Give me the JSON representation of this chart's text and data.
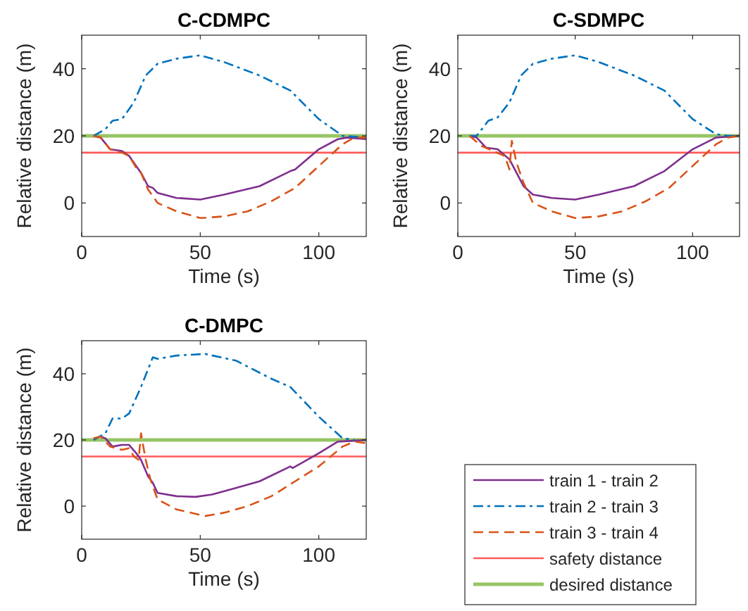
{
  "chart_data": [
    {
      "type": "line",
      "title": "C-CDMPC",
      "xlabel": "Time (s)",
      "ylabel": "Relative distance (m)",
      "xlim": [
        0,
        120
      ],
      "ylim": [
        -10,
        50
      ],
      "xticks": [
        0,
        50,
        100
      ],
      "yticks": [
        0,
        20,
        40
      ],
      "grid": false,
      "legend": "bottom right",
      "series": [
        {
          "name": "train 1 - train 2",
          "color": "#7e2f8e",
          "line_style": "solid",
          "x": [
            5,
            8,
            12,
            17,
            20,
            23,
            25,
            28,
            30,
            32,
            40,
            50,
            60,
            75,
            88,
            90,
            100,
            108,
            112,
            120
          ],
          "values": [
            20,
            19.5,
            16,
            15.5,
            14,
            11,
            9,
            5,
            4.5,
            3,
            1.5,
            1,
            2.5,
            5,
            9.5,
            10,
            16,
            19,
            19.5,
            19
          ]
        },
        {
          "name": "train 2 - train 3",
          "color": "#0072bd",
          "line_style": "dashdot",
          "x": [
            5,
            10,
            13,
            17,
            22,
            27,
            32,
            40,
            50,
            60,
            75,
            88,
            100,
            110,
            120
          ],
          "values": [
            20,
            22,
            24.5,
            25,
            30,
            38,
            41.5,
            43,
            44,
            42,
            38,
            33.5,
            25,
            20,
            19.5
          ]
        },
        {
          "name": "train 3 - train 4",
          "color": "#d95319",
          "line_style": "dashed",
          "x": [
            5,
            8,
            12,
            17,
            20,
            23,
            25,
            28,
            30,
            32,
            40,
            50,
            60,
            70,
            80,
            90,
            100,
            110,
            115,
            120
          ],
          "values": [
            20,
            19.5,
            16,
            15,
            14,
            10.5,
            9,
            4,
            2,
            0,
            -2.5,
            -4.5,
            -4,
            -2.5,
            0.5,
            4.5,
            11,
            17.5,
            19.5,
            19.5
          ]
        },
        {
          "name": "safety distance",
          "color": "#ff5a5a",
          "line_style": "solid",
          "x": [
            0,
            120
          ],
          "values": [
            15,
            15
          ]
        },
        {
          "name": "desired distance",
          "color": "#97c565",
          "line_style": "solid",
          "x": [
            0,
            120
          ],
          "values": [
            20,
            20
          ]
        }
      ]
    },
    {
      "type": "line",
      "title": "C-SDMPC",
      "xlabel": "Time (s)",
      "ylabel": "Relative distance (m)",
      "xlim": [
        0,
        120
      ],
      "ylim": [
        -10,
        50
      ],
      "xticks": [
        0,
        50,
        100
      ],
      "yticks": [
        0,
        20,
        40
      ],
      "grid": false,
      "series": [
        {
          "color": "#7e2f8e",
          "line_style": "solid",
          "x": [
            5,
            8,
            12,
            17,
            22,
            25,
            28,
            32,
            40,
            50,
            60,
            75,
            88,
            100,
            110,
            120
          ],
          "values": [
            20,
            19.5,
            16.5,
            16,
            13,
            9,
            5,
            2.5,
            1.5,
            1,
            2.5,
            5,
            9.5,
            16,
            19.5,
            20
          ]
        },
        {
          "color": "#0072bd",
          "line_style": "dashdot",
          "x": [
            5,
            8,
            13,
            17,
            22,
            27,
            32,
            40,
            50,
            60,
            75,
            88,
            100,
            110,
            115,
            120
          ],
          "values": [
            20,
            20,
            24.5,
            25.5,
            30,
            38,
            41.5,
            43,
            44,
            42,
            38,
            33.5,
            25,
            20.5,
            20,
            20
          ]
        },
        {
          "color": "#d95319",
          "line_style": "dashed",
          "x": [
            5,
            10,
            15,
            20,
            22,
            23,
            25,
            28,
            32,
            40,
            50,
            60,
            70,
            80,
            90,
            100,
            110,
            115,
            120
          ],
          "values": [
            20,
            17,
            15.5,
            14,
            10,
            18.5,
            12,
            6,
            0,
            -2.5,
            -4.5,
            -4,
            -2.5,
            0.5,
            4.5,
            11,
            17.5,
            19.5,
            20
          ]
        },
        {
          "color": "#ff5a5a",
          "line_style": "solid",
          "x": [
            0,
            120
          ],
          "values": [
            15,
            15
          ]
        },
        {
          "color": "#97c565",
          "line_style": "solid",
          "x": [
            0,
            120
          ],
          "values": [
            20,
            20
          ]
        }
      ]
    },
    {
      "type": "line",
      "title": "C-DMPC",
      "xlabel": "Time (s)",
      "ylabel": "Relative distance (m)",
      "xlim": [
        0,
        120
      ],
      "ylim": [
        -10,
        50
      ],
      "xticks": [
        0,
        50,
        100
      ],
      "yticks": [
        0,
        20,
        40
      ],
      "grid": false,
      "series": [
        {
          "color": "#7e2f8e",
          "line_style": "solid",
          "x": [
            5,
            8,
            10,
            13,
            17,
            20,
            23,
            25,
            28,
            30,
            32,
            40,
            48,
            55,
            65,
            75,
            88,
            89,
            100,
            108,
            120
          ],
          "values": [
            20.5,
            21,
            20.5,
            18,
            18.5,
            18.5,
            16,
            14,
            9,
            7,
            4,
            3,
            2.8,
            3.5,
            5.5,
            7.5,
            12,
            11.5,
            16,
            19.5,
            20
          ]
        },
        {
          "color": "#0072bd",
          "line_style": "dashdot",
          "x": [
            5,
            10,
            13,
            17,
            20,
            25,
            30,
            32,
            40,
            52,
            65,
            80,
            88,
            100,
            110,
            115
          ],
          "values": [
            20,
            22,
            26.5,
            26.5,
            28,
            36,
            45,
            44.5,
            45.5,
            46,
            44,
            38.5,
            36,
            27,
            20.5,
            20
          ]
        },
        {
          "color": "#d95319",
          "line_style": "dashed",
          "x": [
            5,
            8,
            12,
            17,
            20,
            22,
            24,
            25,
            27,
            29,
            32,
            40,
            52,
            60,
            70,
            80,
            90,
            100,
            110,
            115,
            120
          ],
          "values": [
            20.5,
            21,
            18,
            17,
            17.5,
            15,
            14,
            22,
            14,
            8,
            2,
            -1,
            -3,
            -2,
            0,
            3,
            7.5,
            12,
            18,
            19.5,
            19
          ]
        },
        {
          "color": "#ff5a5a",
          "line_style": "solid",
          "x": [
            0,
            120
          ],
          "values": [
            15,
            15
          ]
        },
        {
          "color": "#97c565",
          "line_style": "solid",
          "x": [
            0,
            120
          ],
          "values": [
            20,
            20
          ]
        }
      ]
    }
  ]
}
